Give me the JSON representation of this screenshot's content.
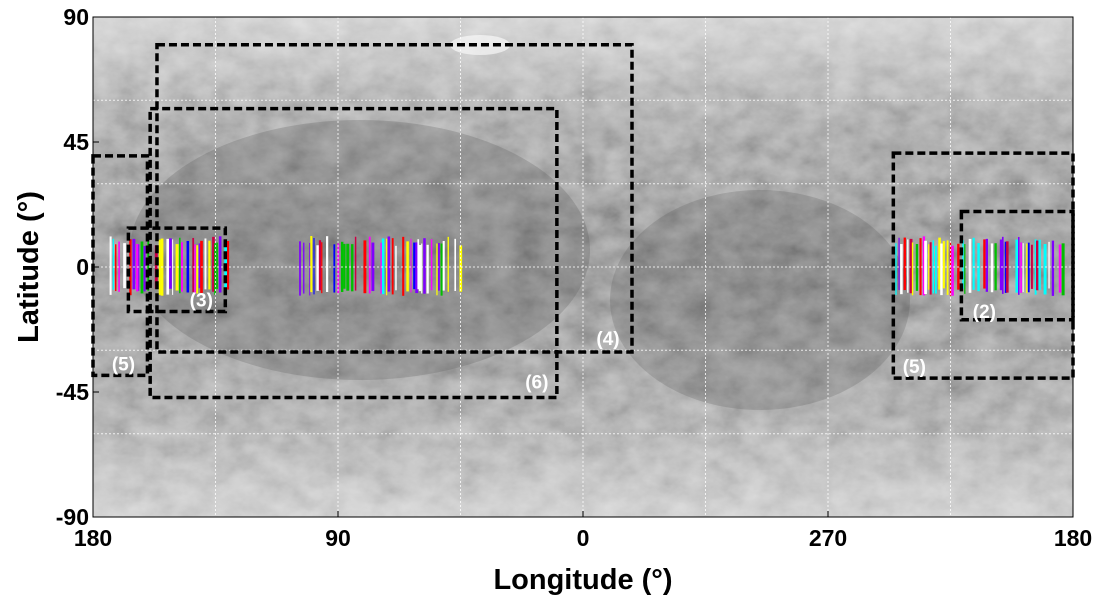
{
  "chart_data": {
    "type": "map",
    "x_label": "Longitude (°)",
    "y_label": "Latitude (°)",
    "xlim": [
      180,
      -180
    ],
    "ylim": [
      -90,
      90
    ],
    "xticks": [
      180,
      90,
      0,
      {
        "value": -90,
        "label": "270"
      },
      {
        "value": -180,
        "label": "180"
      }
    ],
    "yticks": [
      -90,
      -45,
      0,
      45,
      90
    ],
    "grid": true,
    "regions": [
      {
        "label": "(4)",
        "lon": [
          156.5,
          -18
        ],
        "lat": [
          80,
          -30.6
        ]
      },
      {
        "label": "(6)",
        "lon": [
          159,
          9.6
        ],
        "lat": [
          57,
          -47
        ]
      },
      {
        "label": "(3)",
        "lon": [
          167,
          131.4
        ],
        "lat": [
          14,
          -16
        ]
      },
      {
        "label": "(5)",
        "lon": [
          180,
          160
        ],
        "lat": [
          40,
          -39
        ]
      },
      {
        "label": "(5)",
        "lon": [
          -114,
          -180
        ],
        "lat": [
          41,
          -40
        ]
      },
      {
        "label": "(2)",
        "lon": [
          -139,
          -180
        ],
        "lat": [
          20,
          -19
        ]
      }
    ]
  }
}
